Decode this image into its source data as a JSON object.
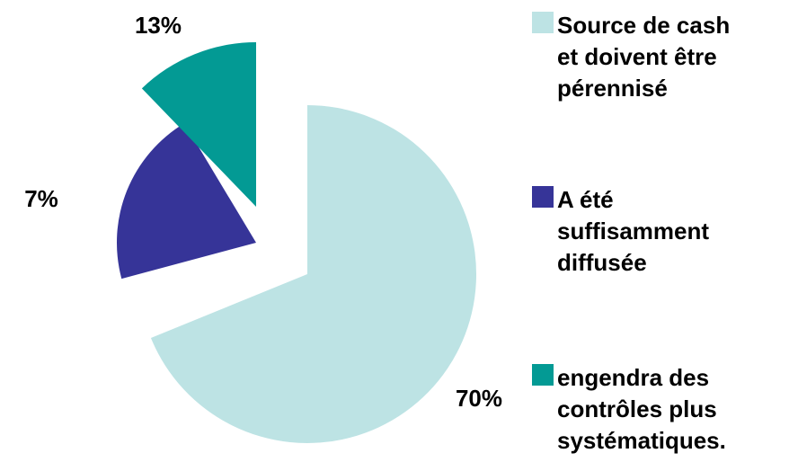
{
  "chart_data": {
    "type": "pie",
    "categories": [
      "Source de cash et doivent être pérennisé",
      "A été suffisamment diffusée",
      "engendra des contrôles plus systématiques."
    ],
    "values": [
      70,
      7,
      13
    ],
    "data_labels": [
      "70%",
      "7%",
      "13%"
    ],
    "colors": [
      "#BDE3E4",
      "#363498",
      "#039A94"
    ],
    "exploded": [
      false,
      true,
      true
    ],
    "legend": {
      "position": "right",
      "entries": [
        {
          "lines": [
            "Source de cash",
            "et doivent être",
            "pérennisé"
          ],
          "color": "#BDE3E4"
        },
        {
          "lines": [
            "A été",
            "suffisamment",
            "diffusée"
          ],
          "color": "#363498"
        },
        {
          "lines": [
            "engendra des",
            "contrôles plus",
            "systématiques."
          ],
          "color": "#039A94"
        }
      ]
    }
  }
}
